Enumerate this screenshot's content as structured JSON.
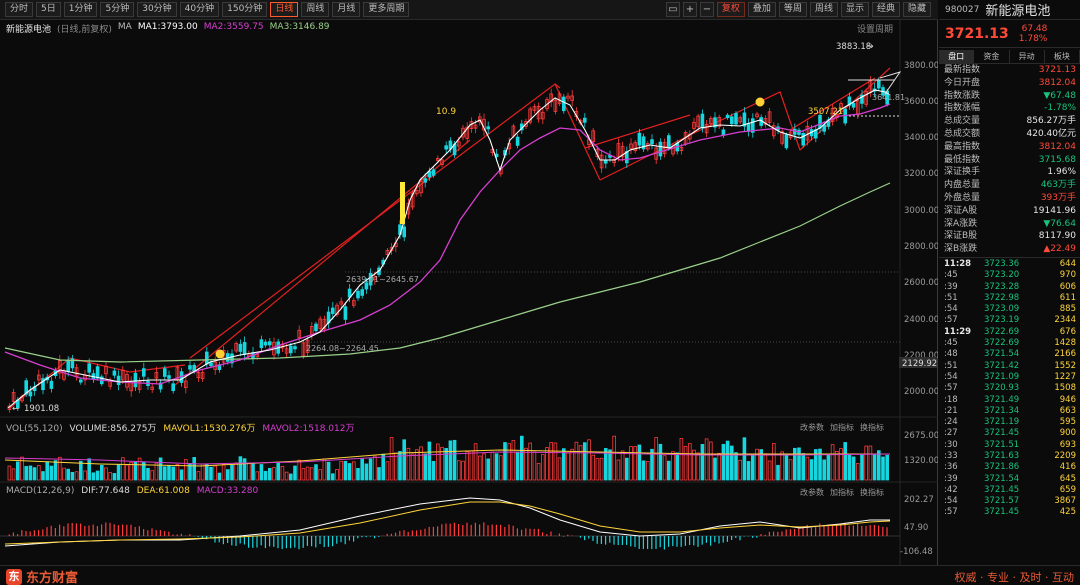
{
  "toolbar": {
    "periods": [
      "分时",
      "5日",
      "1分钟",
      "5分钟",
      "30分钟",
      "40分钟",
      "150分钟",
      "日线",
      "周线",
      "月线",
      "更多周期"
    ],
    "active_period": "日线",
    "right_buttons": [
      "复权",
      "叠加",
      "等周",
      "周线",
      "显示",
      "经典",
      "隐藏"
    ],
    "icons": [
      "layout-icon",
      "zoom-in-icon",
      "zoom-out-icon"
    ]
  },
  "main_legend": {
    "title": "新能源电池",
    "sub": "(日线,前复权)",
    "ma": "MA",
    "ma1": "MA1:3793.00",
    "ma2": "MA2:3559.75",
    "ma3": "MA3:3146.89",
    "settings": "设置周期"
  },
  "price_axis": [
    "3800.00",
    "3600.00",
    "3400.00",
    "3200.00",
    "3000.00",
    "2800.00",
    "2600.00",
    "2400.00",
    "2200.00",
    "2000.00"
  ],
  "annotations": {
    "high": "3883.18",
    "low": "1901.08",
    "label_109": "10.9",
    "level_2639": "2639.01~2645.67",
    "level_2264": "2264.08~2264.45",
    "level_3507": "3507.21",
    "level_3641": "3641.81",
    "price_tag": "2129.92"
  },
  "volume_legend": {
    "name": "VOL(55,120)",
    "vol": "VOLUME:856.275万",
    "mavol1": "MAVOL1:1530.276万",
    "mavol2": "MAVOL2:1518.012万",
    "axis_top": "2675.00",
    "axis_mid": "1320.00",
    "buttons": [
      "改参数",
      "加指标",
      "换指标"
    ]
  },
  "macd_legend": {
    "name": "MACD(12,26,9)",
    "dif": "DIF:77.648",
    "dea": "DEA:61.008",
    "macd": "MACD:33.280",
    "axis_top": "202.27",
    "axis_mid": "47.90",
    "axis_bottom": "-106.48",
    "buttons": [
      "改参数",
      "加指标",
      "换指标"
    ]
  },
  "side": {
    "code": "980027",
    "name": "新能源电池",
    "price": "3721.13",
    "change": "67.48",
    "change_pct": "1.78%",
    "tabs": [
      "盘口",
      "资金",
      "异动",
      "板块"
    ],
    "stats": [
      {
        "k": "最新指数",
        "v": "3721.13",
        "c": "red"
      },
      {
        "k": "今日开盘",
        "v": "3812.04",
        "c": "red"
      },
      {
        "k": "指数涨跌",
        "v": "▼67.48",
        "c": "green"
      },
      {
        "k": "指数涨幅",
        "v": "-1.78%",
        "c": "green"
      },
      {
        "k": "总成交量",
        "v": "856.27万手",
        "c": ""
      },
      {
        "k": "总成交额",
        "v": "420.40亿元",
        "c": ""
      },
      {
        "k": "最高指数",
        "v": "3812.04",
        "c": "red"
      },
      {
        "k": "最低指数",
        "v": "3715.68",
        "c": "green"
      },
      {
        "k": "深证换手",
        "v": "1.96%",
        "c": ""
      },
      {
        "k": "内盘总量",
        "v": "463万手",
        "c": "green"
      },
      {
        "k": "外盘总量",
        "v": "393万手",
        "c": "red"
      },
      {
        "k": "深证A股",
        "v": "19141.96",
        "c": ""
      },
      {
        "k": "深A涨跌",
        "v": "▼76.64",
        "c": "green"
      },
      {
        "k": "深证B股",
        "v": "8117.90",
        "c": ""
      },
      {
        "k": "深B涨跌",
        "v": "▲22.49",
        "c": "red"
      }
    ],
    "ticks": [
      {
        "t": "11:28",
        "p": "3723.36",
        "v": "644",
        "hdr": true
      },
      {
        "t": ":45",
        "p": "3723.20",
        "v": "970"
      },
      {
        "t": ":39",
        "p": "3723.28",
        "v": "606"
      },
      {
        "t": ":51",
        "p": "3722.98",
        "v": "611"
      },
      {
        "t": ":54",
        "p": "3723.09",
        "v": "885"
      },
      {
        "t": ":57",
        "p": "3723.19",
        "v": "2344"
      },
      {
        "t": "11:29",
        "p": "3722.69",
        "v": "676",
        "hdr": true
      },
      {
        "t": ":45",
        "p": "3722.69",
        "v": "1428"
      },
      {
        "t": ":48",
        "p": "3721.54",
        "v": "2166"
      },
      {
        "t": ":51",
        "p": "3721.42",
        "v": "1552"
      },
      {
        "t": ":54",
        "p": "3721.09",
        "v": "1227"
      },
      {
        "t": ":57",
        "p": "3720.93",
        "v": "1508"
      },
      {
        "t": ":18",
        "p": "3721.49",
        "v": "946"
      },
      {
        "t": ":21",
        "p": "3721.34",
        "v": "663"
      },
      {
        "t": ":24",
        "p": "3721.19",
        "v": "595"
      },
      {
        "t": ":27",
        "p": "3721.45",
        "v": "900"
      },
      {
        "t": ":30",
        "p": "3721.51",
        "v": "693"
      },
      {
        "t": ":33",
        "p": "3721.63",
        "v": "2209"
      },
      {
        "t": ":36",
        "p": "3721.86",
        "v": "416"
      },
      {
        "t": ":39",
        "p": "3721.54",
        "v": "645"
      },
      {
        "t": ":42",
        "p": "3721.45",
        "v": "659"
      },
      {
        "t": ":54",
        "p": "3721.57",
        "v": "3867"
      },
      {
        "t": ":57",
        "p": "3721.45",
        "v": "425"
      }
    ]
  },
  "footer": {
    "brand": "东方财富",
    "logo": "东",
    "slogan": "权威 · 专业 · 及时 · 互动"
  },
  "colors": {
    "up": "#ff3a3a",
    "down": "#16d6e0",
    "ma1": "#ffffff",
    "ma2": "#d63fd0",
    "ma3": "#9ad18a",
    "accent": "#ff5a2a"
  }
}
